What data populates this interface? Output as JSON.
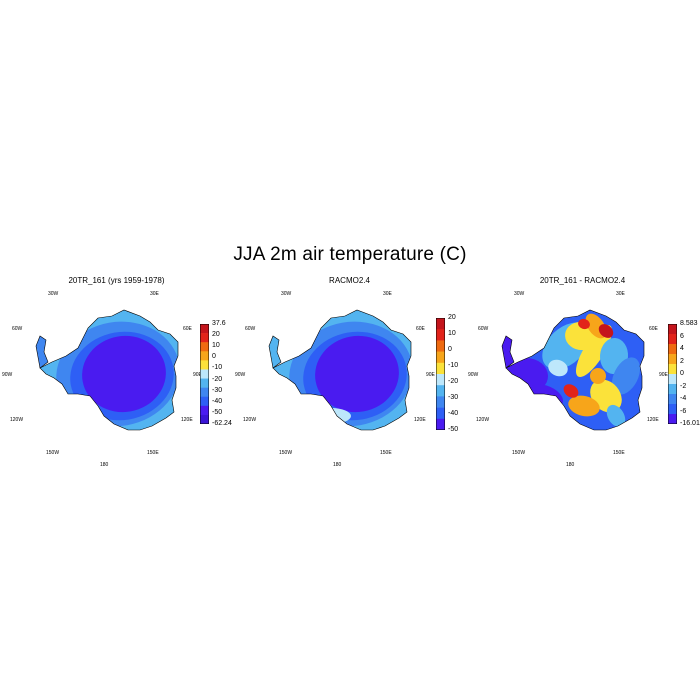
{
  "title": "JJA 2m air temperature (C)",
  "colors": {
    "deep_purple": "#4a1bf0",
    "blue": "#2e5ff5",
    "mid_blue": "#3f86f0",
    "light_blue": "#53b4f0",
    "pale_blue": "#bde7fb",
    "yellow": "#fbe23a",
    "orange": "#f7a51a",
    "dark_orange": "#ef6a10",
    "red": "#e2231a",
    "dark_red": "#c4151c"
  },
  "panels": [
    {
      "title": "20TR_161 (yrs 1959-1978)",
      "map_labels": [
        "30W",
        "30E",
        "60W",
        "60E",
        "90W",
        "90E",
        "120W",
        "120E",
        "150W",
        "150E",
        "180"
      ],
      "colorbar_labels": [
        "37.6",
        "20",
        "10",
        "0",
        "-10",
        "-20",
        "-30",
        "-40",
        "-50",
        "-62.24"
      ],
      "colorbar_colors": [
        "#c4151c",
        "#e2231a",
        "#ef6a10",
        "#f7a51a",
        "#fbe23a",
        "#bde7fb",
        "#53b4f0",
        "#3f86f0",
        "#2e5ff5",
        "#4a1bf0",
        "#3a14d6"
      ]
    },
    {
      "title": "RACMO2.4",
      "map_labels": [
        "30W",
        "30E",
        "60W",
        "60E",
        "90W",
        "90E",
        "120W",
        "120E",
        "150W",
        "150E",
        "180"
      ],
      "colorbar_labels": [
        "20",
        "10",
        "0",
        "-10",
        "-20",
        "-30",
        "-40",
        "-50"
      ],
      "colorbar_colors": [
        "#c4151c",
        "#e2231a",
        "#ef6a10",
        "#f7a51a",
        "#fbe23a",
        "#bde7fb",
        "#53b4f0",
        "#3f86f0",
        "#2e5ff5",
        "#4a1bf0"
      ]
    },
    {
      "title": "20TR_161 - RACMO2.4",
      "map_labels": [
        "30W",
        "30E",
        "60W",
        "60E",
        "90W",
        "90E",
        "120W",
        "120E",
        "150W",
        "150E",
        "180"
      ],
      "colorbar_labels": [
        "8.583",
        "6",
        "4",
        "2",
        "0",
        "-2",
        "-4",
        "-6",
        "-16.011"
      ],
      "colorbar_colors": [
        "#c4151c",
        "#e2231a",
        "#ef6a10",
        "#f7a51a",
        "#fbe23a",
        "#bde7fb",
        "#53b4f0",
        "#3f86f0",
        "#2e5ff5",
        "#4a1bf0"
      ]
    }
  ]
}
